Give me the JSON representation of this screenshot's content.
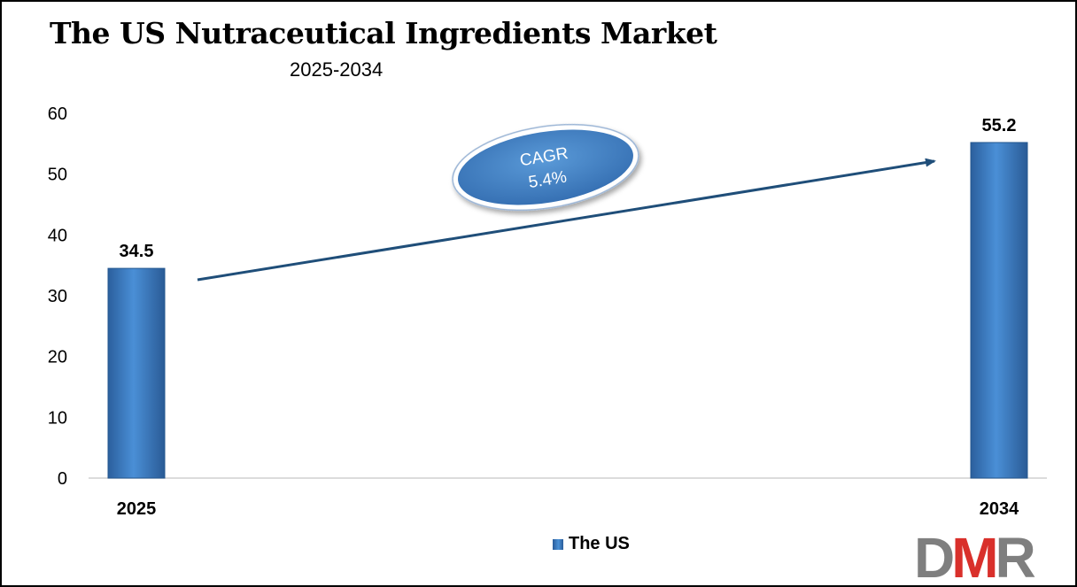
{
  "title": "The US Nutraceutical Ingredients Market",
  "subtitle": "2025-2034",
  "chart_data": {
    "type": "bar",
    "categories": [
      "2025",
      "2034"
    ],
    "series": [
      {
        "name": "The US",
        "values": [
          34.5,
          55.2
        ]
      }
    ],
    "data_labels": [
      "34.5",
      "55.2"
    ],
    "y_ticks": [
      "0",
      "10",
      "20",
      "30",
      "40",
      "50",
      "60"
    ],
    "ylim": [
      0,
      60
    ],
    "grid": false,
    "legend_position": "bottom",
    "annotation": {
      "line1": "CAGR",
      "line2": "5.4%"
    },
    "colors": {
      "bar": "#3a78c0",
      "bar_dark": "#24578f",
      "arrow": "#1f4e79",
      "ellipse": "#3f7fc2"
    }
  },
  "legend": {
    "label": "The US"
  },
  "logo": {
    "text": "DMR",
    "colors": {
      "gray": "#7f7f7f",
      "red": "#d9302b"
    }
  }
}
